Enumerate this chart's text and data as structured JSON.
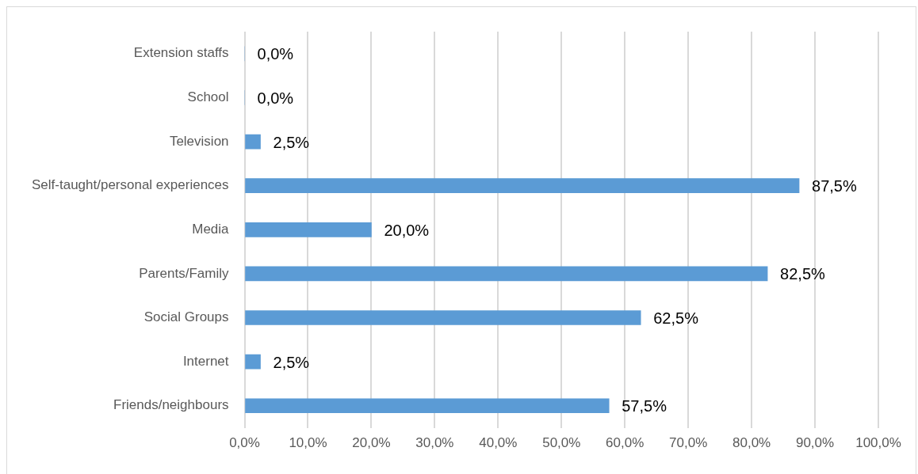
{
  "chart_data": {
    "type": "bar",
    "orientation": "horizontal",
    "categories": [
      "Extension staffs",
      "School",
      "Television",
      "Self-taught/personal experiences",
      "Media",
      "Parents/Family",
      "Social Groups",
      "Internet",
      "Friends/neighbours"
    ],
    "values": [
      0,
      0,
      2.5,
      87.5,
      20,
      82.5,
      62.5,
      2.5,
      57.5
    ],
    "value_labels": [
      "0,0%",
      "0,0%",
      "2,5%",
      "87,5%",
      "20,0%",
      "82,5%",
      "62,5%",
      "2,5%",
      "57,5%"
    ],
    "color": "#5b9bd5",
    "xlim": [
      0,
      100
    ],
    "xticks": [
      {
        "value": 0,
        "label": "0,0%"
      },
      {
        "value": 10,
        "label": "10,0%"
      },
      {
        "value": 20,
        "label": "20,0%"
      },
      {
        "value": 30,
        "label": "30,0%"
      },
      {
        "value": 40,
        "label": "40,0%"
      },
      {
        "value": 50,
        "label": "50,0%"
      },
      {
        "value": 60,
        "label": "60,0%"
      },
      {
        "value": 70,
        "label": "70,0%"
      },
      {
        "value": 80,
        "label": "80,0%"
      },
      {
        "value": 90,
        "label": "90,0%"
      },
      {
        "value": 100,
        "label": "100,0%"
      }
    ],
    "grid": "x"
  }
}
